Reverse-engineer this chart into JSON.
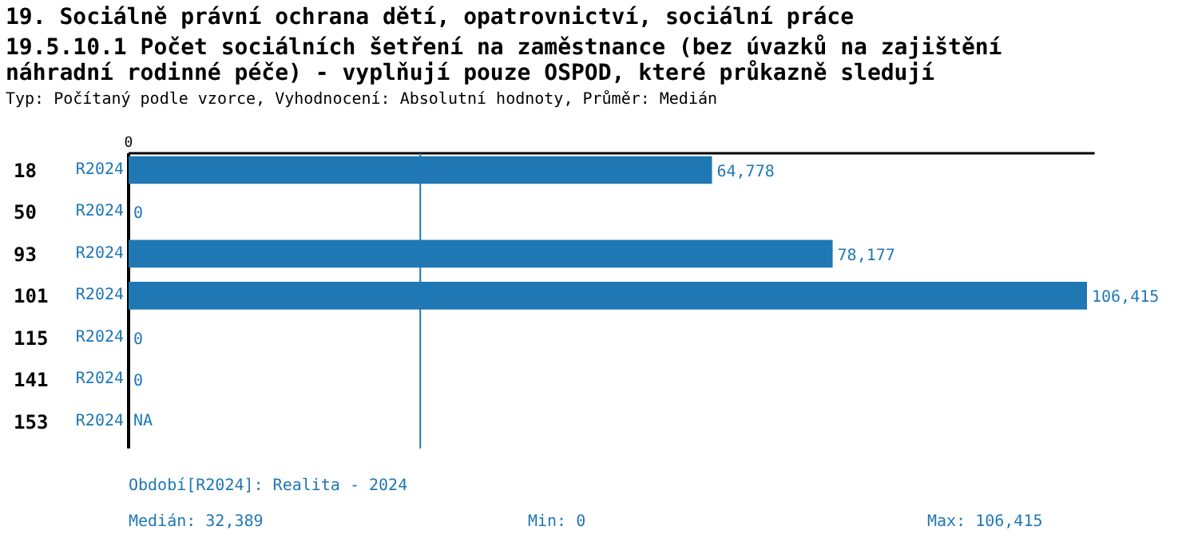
{
  "chart_data": {
    "type": "bar",
    "orientation": "horizontal",
    "title": "19. Sociálně právní ochrana dětí, opatrovnictví, sociální práce",
    "subtitle": "19.5.10.1 Počet sociálních šetření na zaměstnance (bez úvazků na zajištění náhradní rodinné péče) - vyplňují pouze OSPOD, které průkazně sledují",
    "categories": [
      "18",
      "50",
      "93",
      "101",
      "115",
      "141",
      "153"
    ],
    "series": [
      {
        "name": "R2024",
        "color": "#1f77b4",
        "values": [
          64778,
          0,
          78177,
          106415,
          0,
          0,
          null
        ],
        "value_labels": [
          "64,778",
          "0",
          "78,177",
          "106,415",
          "0",
          "0",
          "NA"
        ]
      }
    ],
    "ref_lines": [
      {
        "axis": "x",
        "value": 32389,
        "label": null,
        "color": "#1f77b4"
      }
    ],
    "annotations": [
      "Typ: Počítaný podle vzorce, Vyhodnocení: Absolutní hodnoty, Průměr: Medián",
      "0",
      "Období[R2024]: Realita - 2024",
      "Medián: 32,389",
      "Min: 0",
      "Max: 106,415"
    ],
    "grid": false
  }
}
